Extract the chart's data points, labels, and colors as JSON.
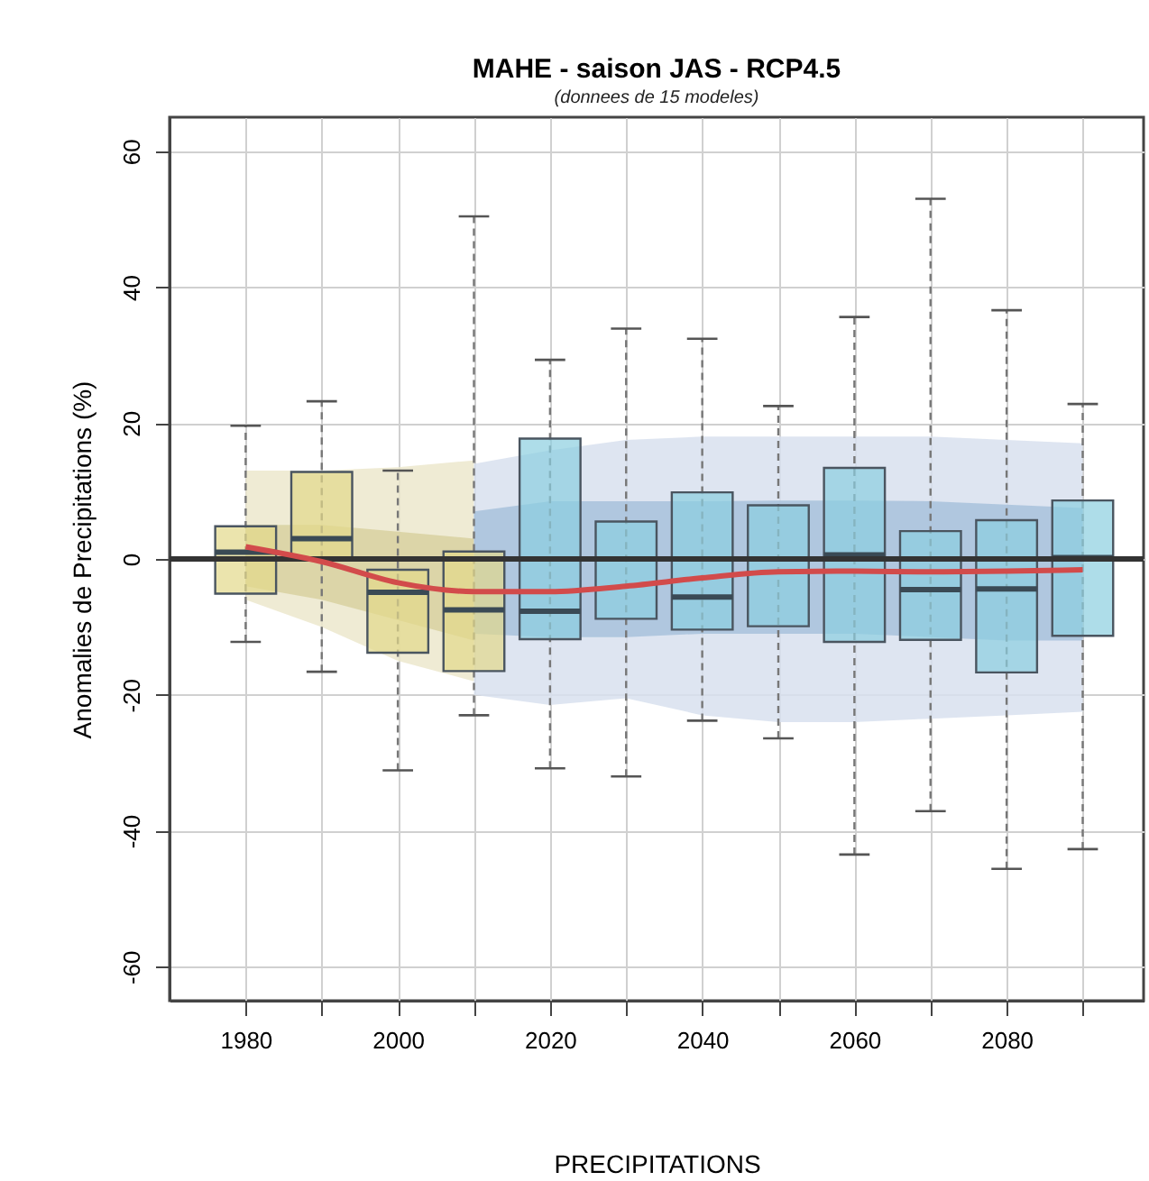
{
  "chart_data": {
    "type": "box",
    "title": "MAHE - saison JAS - RCP4.5",
    "subtitle": "(donnees de 15 modeles)",
    "xlabel": "PRECIPITATIONS",
    "ylabel": "Anomalies de Precipitations (%)",
    "xlim": [
      1970,
      2098
    ],
    "xticks": [
      1980,
      {
        "value": 1990,
        "label": null
      },
      2000,
      {
        "value": 2010,
        "label": null
      },
      2020,
      {
        "value": 2030,
        "label": null
      },
      2040,
      {
        "value": 2050,
        "label": null
      },
      2060,
      {
        "value": 2070,
        "label": null
      },
      2080,
      {
        "value": 2090,
        "label": null
      }
    ],
    "ylim": [
      -65,
      65
    ],
    "yticks": [
      -60,
      -40,
      -20,
      0,
      20,
      40,
      60
    ],
    "grid": true,
    "ref_lines": [
      {
        "axis": "y",
        "value": 0,
        "color": "#333333"
      }
    ],
    "series": [
      {
        "type": "line",
        "color": "#ece8cc",
        "x": [
          1980,
          1990,
          2000,
          2010
        ],
        "values": [
          null,
          null,
          null,
          null
        ],
        "lower": [
          -6,
          -10,
          -15,
          -18
        ],
        "upper": [
          13,
          13,
          13.5,
          14.5
        ]
      },
      {
        "type": "line",
        "color": "#d8e1ee",
        "x": [
          2010,
          2020,
          2030,
          2040,
          2050,
          2060,
          2070,
          2080,
          2090
        ],
        "values": [
          null,
          null,
          null,
          null,
          null,
          null,
          null,
          null,
          null
        ],
        "lower": [
          -20,
          -21.5,
          -20.5,
          -23,
          -24,
          -24,
          -23.5,
          -23,
          -22.5
        ],
        "upper": [
          14,
          16,
          17.5,
          18,
          18,
          18,
          18,
          17.5,
          17
        ]
      },
      {
        "type": "line",
        "color": "#d8d1a0",
        "x": [
          1980,
          1990,
          2000,
          2010
        ],
        "values": [
          null,
          null,
          null,
          null
        ],
        "lower": [
          -4,
          -6,
          -9,
          -12
        ],
        "upper": [
          5,
          5,
          4,
          3
        ]
      },
      {
        "type": "line",
        "color": "#a8c2dc",
        "x": [
          2010,
          2020,
          2030,
          2040,
          2050,
          2060,
          2070,
          2080,
          2090
        ],
        "values": [
          null,
          null,
          null,
          null,
          null,
          null,
          null,
          null,
          null
        ],
        "lower": [
          -11,
          -11.5,
          -11.5,
          -11,
          -11,
          -11,
          -11.5,
          -12,
          -12
        ],
        "upper": [
          7,
          8.5,
          8.5,
          8.5,
          8.6,
          8.6,
          8.5,
          8,
          7.5
        ]
      },
      {
        "type": "box",
        "color": "#e3d98a",
        "x": [
          1980,
          1990,
          2000,
          2010
        ],
        "boxes": [
          {
            "low": -12.2,
            "q1": -5.1,
            "median": 1,
            "q3": 4.8,
            "high": 19.6
          },
          {
            "low": -16.6,
            "q1": 0,
            "median": 3,
            "q3": 12.8,
            "high": 23.2
          },
          {
            "low": -31.1,
            "q1": -13.8,
            "median": -4.9,
            "q3": -1.6,
            "high": 13
          },
          {
            "low": -23,
            "q1": -16.5,
            "median": -7.5,
            "q3": 1.1,
            "high": 50.4
          }
        ]
      },
      {
        "type": "box",
        "color": "#8ccfe0",
        "x": [
          2020,
          2030,
          2040,
          2050,
          2060,
          2070,
          2080,
          2090
        ],
        "boxes": [
          {
            "low": -30.8,
            "q1": -11.8,
            "median": -7.7,
            "q3": 17.7,
            "high": 29.3
          },
          {
            "low": -32,
            "q1": -8.8,
            "median": 0,
            "q3": 5.5,
            "high": 33.9
          },
          {
            "low": -23.8,
            "q1": -10.4,
            "median": -5.6,
            "q3": 9.8,
            "high": 32.4
          },
          {
            "low": -26.4,
            "q1": -9.9,
            "median": 0,
            "q3": 7.9,
            "high": 22.5
          },
          {
            "low": -43.5,
            "q1": -12.2,
            "median": 0.6,
            "q3": 13.4,
            "high": 35.6
          },
          {
            "low": -37.1,
            "q1": -11.9,
            "median": -4.5,
            "q3": 4.1,
            "high": 53
          },
          {
            "low": -45.6,
            "q1": -16.7,
            "median": -4.4,
            "q3": 5.7,
            "high": 36.6
          },
          {
            "low": -42.7,
            "q1": -11.3,
            "median": 0.2,
            "q3": 8.6,
            "high": 22.8
          }
        ]
      },
      {
        "type": "line",
        "color": "#d24b4b",
        "x": [
          1980,
          1990,
          2000,
          2010,
          2020,
          2030,
          2040,
          2050,
          2060,
          2070,
          2080,
          2090
        ],
        "values": [
          1.8,
          -0.4,
          -3.5,
          -4.8,
          -4.8,
          -4,
          -2.8,
          -1.9,
          -1.8,
          -1.9,
          -1.8,
          -1.6
        ]
      }
    ]
  }
}
